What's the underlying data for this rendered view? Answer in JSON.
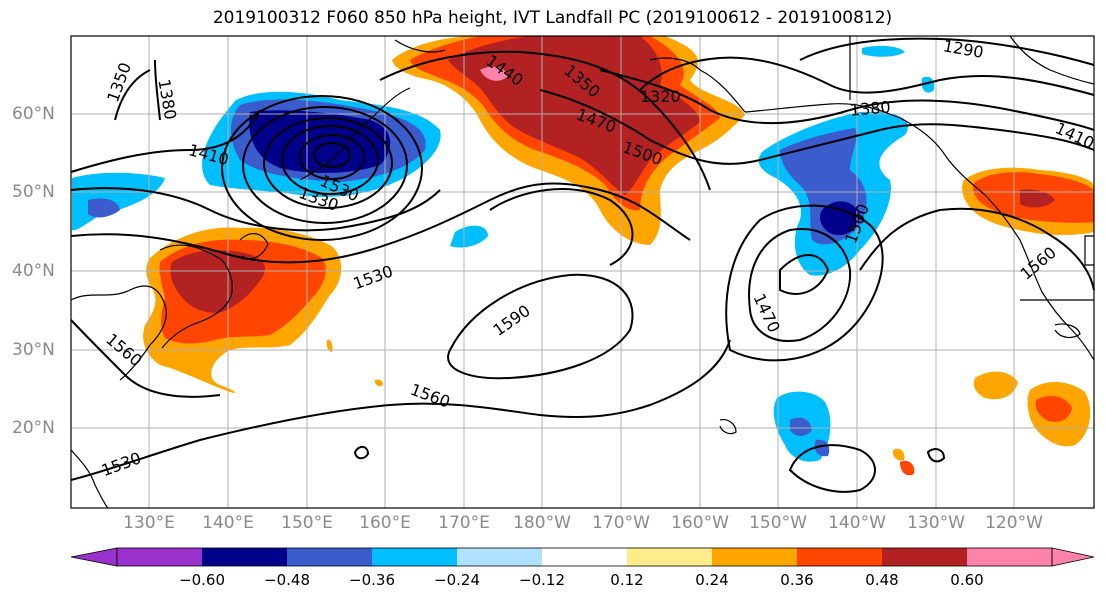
{
  "title": "2019100312 F060 850 hPa height, IVT Landfall PC (2019100612 - 2019100812)",
  "lat_labels": [
    "60°N",
    "50°N",
    "40°N",
    "30°N",
    "20°N"
  ],
  "lon_labels": [
    "130°E",
    "140°E",
    "150°E",
    "160°E",
    "170°E",
    "180°W",
    "170°W",
    "160°W",
    "150°W",
    "140°W",
    "130°W",
    "120°W"
  ],
  "colorbar": {
    "ticks": [
      "−0.60",
      "−0.48",
      "−0.36",
      "−0.24",
      "−0.12",
      "0.12",
      "0.24",
      "0.36",
      "0.48",
      "0.60"
    ],
    "colors": [
      "#9932cc",
      "#00008b",
      "#3a5ccc",
      "#00bfff",
      "#b0e2ff",
      "#ffffff",
      "#ffec8b",
      "#ffa500",
      "#ff4500",
      "#b22222",
      "#ff82ab"
    ]
  },
  "contour_labels": [
    "1350",
    "1380",
    "1410",
    "1530",
    "1560",
    "1530",
    "1330",
    "1350",
    "1440",
    "1470",
    "1500",
    "1320",
    "1290",
    "1380",
    "1410",
    "1590",
    "1470",
    "1500",
    "1560",
    "1560",
    "1530"
  ],
  "colors": {
    "negative_strong": "#00008b",
    "negative_mid": "#3a5ccc",
    "negative_light": "#00bfff",
    "positive_light": "#ffa500",
    "positive_mid": "#ff4500",
    "positive_strong": "#b22222",
    "positive_extreme": "#ff82ab",
    "contour": "#000000",
    "grid": "#b0b0b0"
  }
}
